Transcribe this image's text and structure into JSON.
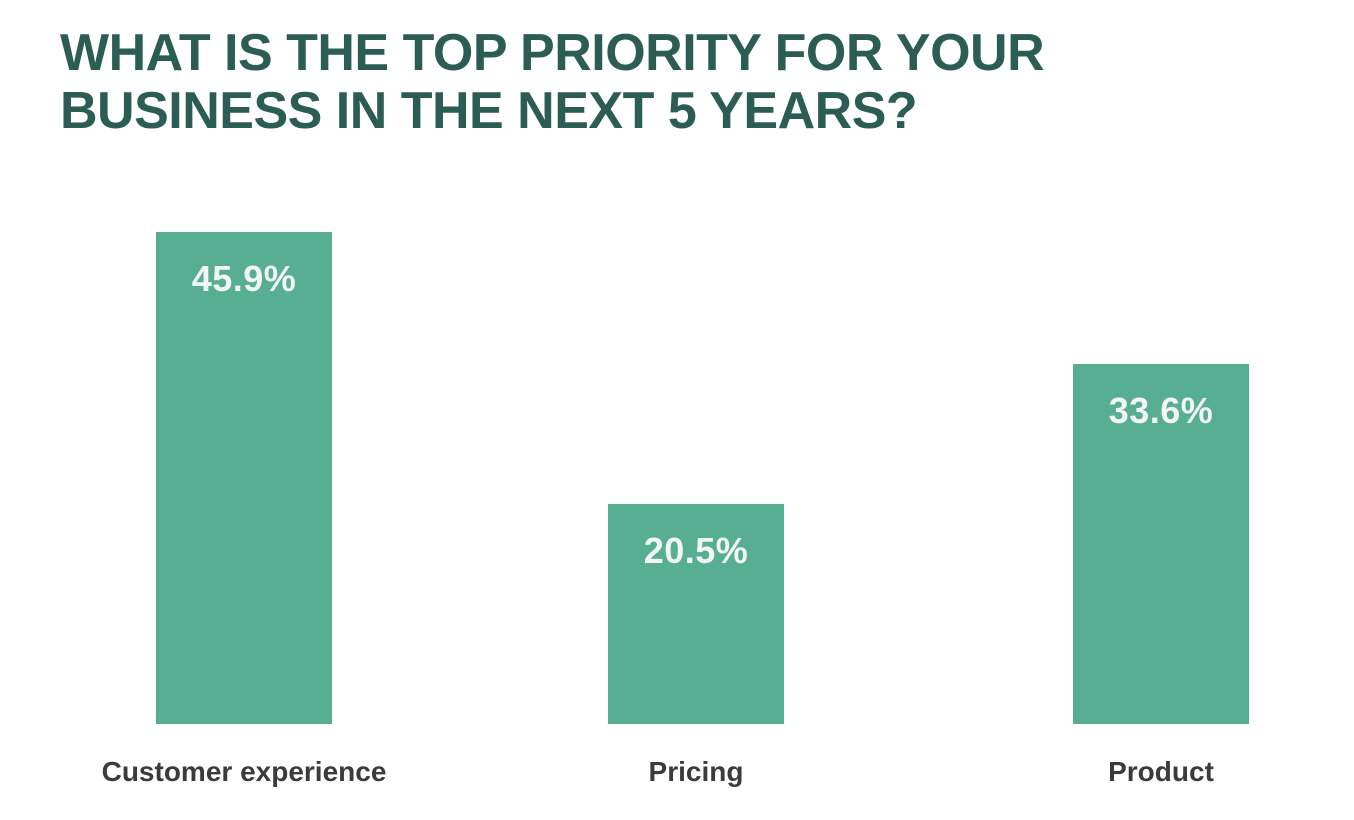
{
  "title": {
    "line1": "WHAT IS THE TOP PRIORITY FOR YOUR",
    "line2": "BUSINESS IN THE NEXT 5 YEARS?"
  },
  "chart_data": {
    "type": "bar",
    "title": "WHAT IS THE TOP PRIORITY FOR YOUR BUSINESS IN THE NEXT 5 YEARS?",
    "categories": [
      "Customer experience",
      "Pricing",
      "Product"
    ],
    "values": [
      45.9,
      20.5,
      33.6
    ],
    "value_labels": [
      "45.9%",
      "20.5%",
      "33.6%"
    ],
    "xlabel": "",
    "ylabel": "",
    "ylim": [
      0,
      50
    ],
    "grid": false,
    "legend": null,
    "axes_visible": false,
    "colors": {
      "bar": "#58ae92",
      "title": "#2c5d55",
      "category_label": "#3b3b3b",
      "value_label": "#f2f6f2",
      "background": "#ffffff"
    }
  }
}
